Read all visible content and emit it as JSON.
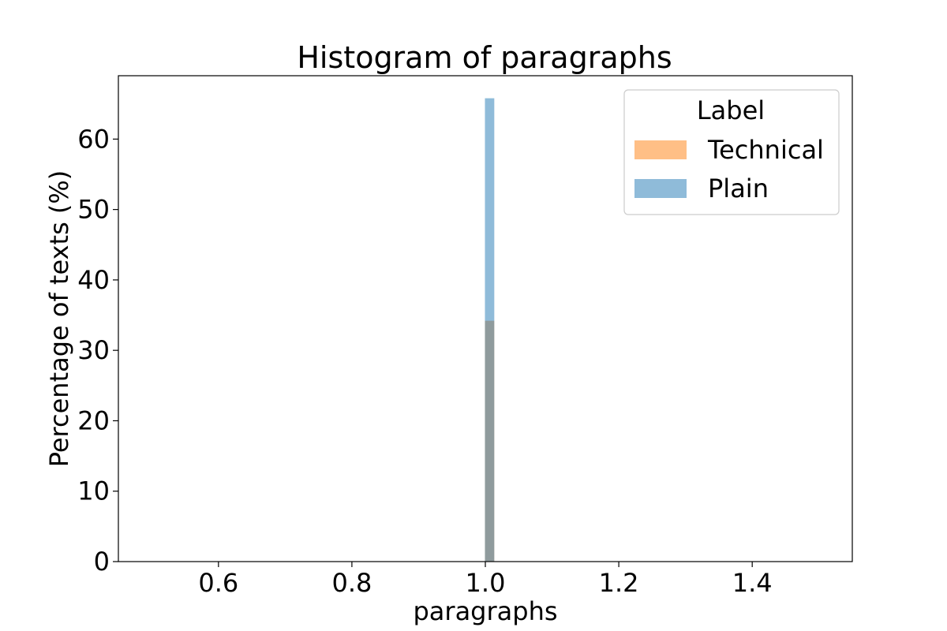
{
  "chart_data": {
    "type": "bar",
    "title": "Histogram of paragraphs",
    "xlabel": "paragraphs",
    "ylabel": "Percentage of texts (%)",
    "xlim": [
      0.45,
      1.55
    ],
    "ylim": [
      0,
      69
    ],
    "x_ticks": [
      0.6,
      0.8,
      1.0,
      1.2,
      1.4
    ],
    "x_tick_labels": [
      "0.6",
      "0.8",
      "1.0",
      "1.2",
      "1.4"
    ],
    "y_ticks": [
      0,
      10,
      20,
      30,
      40,
      50,
      60
    ],
    "y_tick_labels": [
      "0",
      "10",
      "20",
      "30",
      "40",
      "50",
      "60"
    ],
    "bin": {
      "start": 0.9994,
      "end": 1.0134
    },
    "series": [
      {
        "name": "Technical",
        "x": [
          1.0
        ],
        "values": [
          34.2
        ],
        "color": "#ff7f0e",
        "opacity": 0.5
      },
      {
        "name": "Plain",
        "x": [
          1.0
        ],
        "values": [
          65.8
        ],
        "color": "#1f77b4",
        "opacity": 0.5
      }
    ],
    "legend": {
      "title": "Label",
      "position": "top-right",
      "entries": [
        "Technical",
        "Plain"
      ]
    },
    "grid": false
  }
}
